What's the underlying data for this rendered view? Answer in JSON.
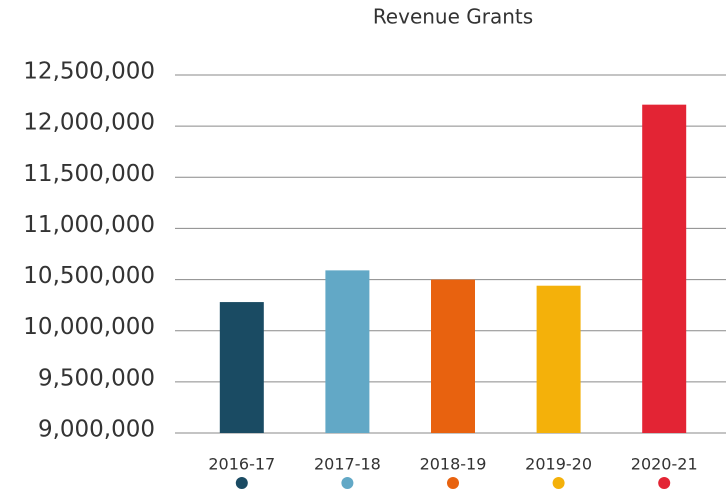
{
  "chart_data": {
    "type": "bar",
    "title": "Revenue Grants",
    "categories": [
      "2016-17",
      "2017-18",
      "2018-19",
      "2019-20",
      "2020-21"
    ],
    "values": [
      10280000,
      10590000,
      10500000,
      10440000,
      12210000
    ],
    "colors": [
      "#1a4b63",
      "#62a8c6",
      "#e8620f",
      "#f4b10a",
      "#e32434"
    ],
    "ylim": [
      9000000,
      12500000
    ],
    "yticks": [
      {
        "value": 9000000,
        "label": "9,000,000"
      },
      {
        "value": 9500000,
        "label": "9,500,000"
      },
      {
        "value": 10000000,
        "label": "10,000,000"
      },
      {
        "value": 10500000,
        "label": "10,500,000"
      },
      {
        "value": 11000000,
        "label": "11,000,000"
      },
      {
        "value": 11500000,
        "label": "11,500,000"
      },
      {
        "value": 12000000,
        "label": "12,000,000"
      },
      {
        "value": 12500000,
        "label": "12,500,000"
      }
    ],
    "grid": true
  }
}
